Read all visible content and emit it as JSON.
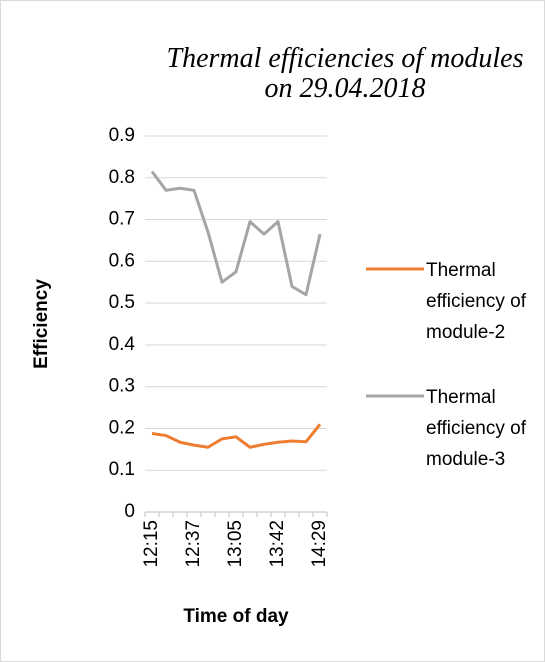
{
  "chart_data": {
    "type": "line",
    "title": "Thermal efficiencies of modules on 29.04.2018",
    "x_label": "Time of day",
    "y_label": "Efficiency",
    "categories": [
      "12:15",
      null,
      null,
      "12:37",
      null,
      null,
      "13:05",
      null,
      null,
      "13:42",
      null,
      null,
      "14:29"
    ],
    "series": [
      {
        "name": "Thermal efficiency of module-2",
        "color": "#ed7d31",
        "values": [
          0.188,
          0.183,
          0.167,
          0.16,
          0.155,
          0.175,
          0.18,
          0.155,
          0.162,
          0.167,
          0.17,
          0.168,
          0.21
        ]
      },
      {
        "name": "Thermal efficiency of module-3",
        "color": "#a5a5a5",
        "values": [
          0.815,
          0.77,
          0.775,
          0.77,
          0.67,
          0.55,
          0.575,
          0.695,
          0.665,
          0.695,
          0.54,
          0.52,
          0.665
        ]
      }
    ],
    "ylim": [
      0,
      0.9
    ],
    "yticks": [
      0,
      0.1,
      0.2,
      0.3,
      0.4,
      0.5,
      0.6,
      0.7,
      0.8,
      0.9
    ],
    "grid": true,
    "legend": "right"
  }
}
